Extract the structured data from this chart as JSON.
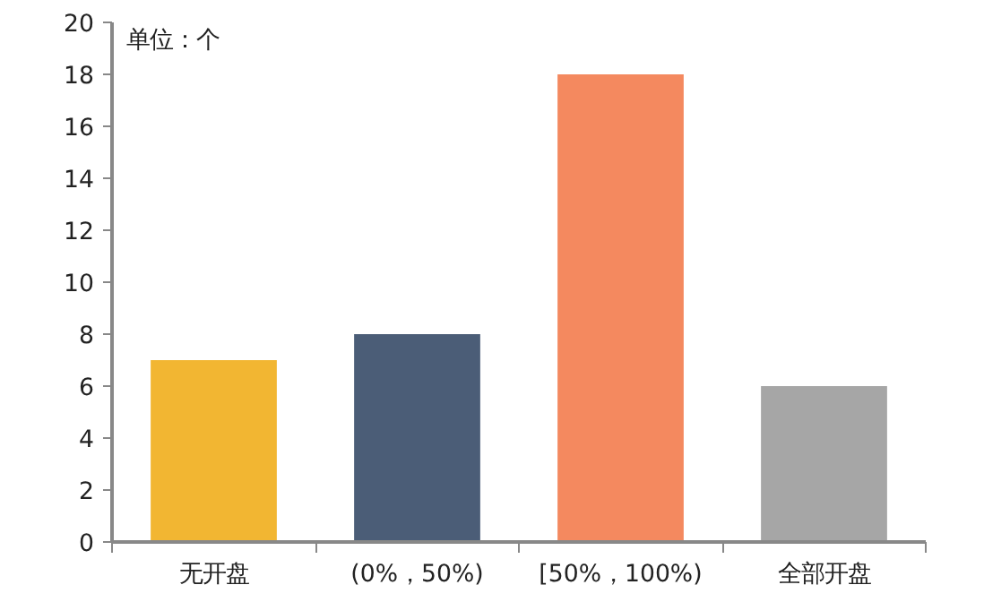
{
  "chart_data": {
    "type": "bar",
    "ylabel": "单位：个",
    "categories": [
      "无开盘",
      "(0%，50%)",
      "[50%，100%)",
      "全部开盘"
    ],
    "values": [
      7,
      8,
      18,
      6
    ],
    "colors": [
      "#f2b632",
      "#4b5d77",
      "#f4895f",
      "#a6a6a6"
    ],
    "ylim": [
      0,
      20
    ],
    "yticks": [
      0,
      2,
      4,
      6,
      8,
      10,
      12,
      14,
      16,
      18,
      20
    ],
    "grid": false
  }
}
